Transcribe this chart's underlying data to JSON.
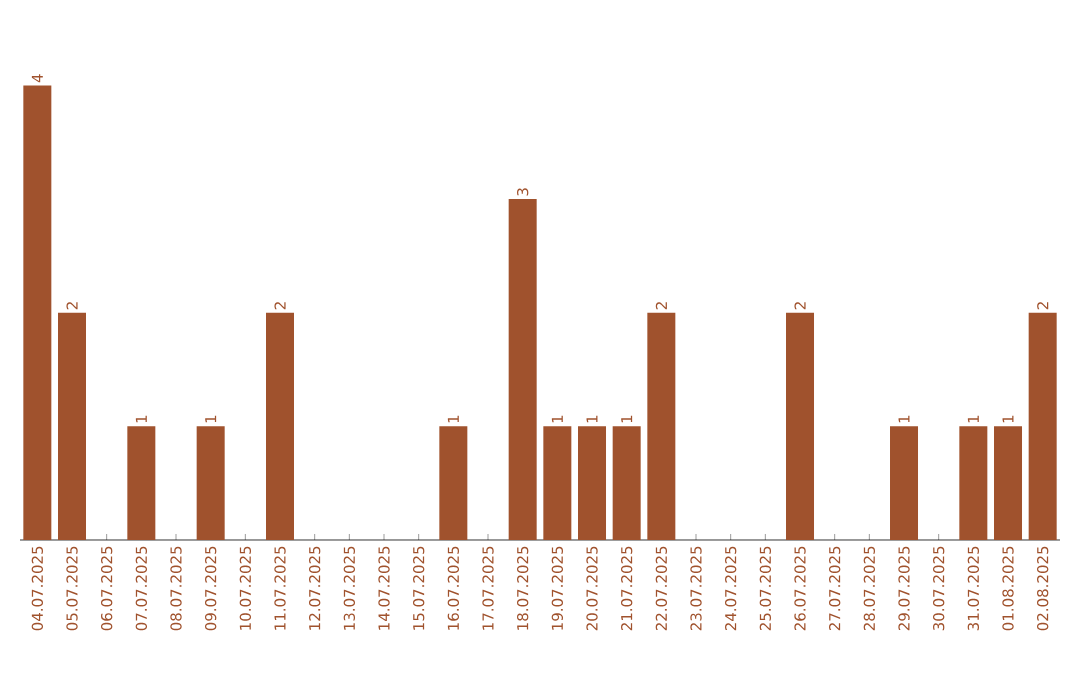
{
  "chart_data": {
    "type": "bar",
    "categories": [
      "04.07.2025",
      "05.07.2025",
      "06.07.2025",
      "07.07.2025",
      "08.07.2025",
      "09.07.2025",
      "10.07.2025",
      "11.07.2025",
      "12.07.2025",
      "13.07.2025",
      "14.07.2025",
      "15.07.2025",
      "16.07.2025",
      "17.07.2025",
      "18.07.2025",
      "19.07.2025",
      "20.07.2025",
      "21.07.2025",
      "22.07.2025",
      "23.07.2025",
      "24.07.2025",
      "25.07.2025",
      "26.07.2025",
      "27.07.2025",
      "28.07.2025",
      "29.07.2025",
      "30.07.2025",
      "31.07.2025",
      "01.08.2025",
      "02.08.2025"
    ],
    "values": [
      4,
      2,
      0,
      1,
      0,
      1,
      0,
      2,
      0,
      0,
      0,
      0,
      1,
      0,
      3,
      1,
      1,
      1,
      2,
      0,
      0,
      0,
      2,
      0,
      0,
      1,
      0,
      1,
      1,
      2
    ],
    "value_labels": [
      "4",
      "2",
      null,
      "1",
      null,
      "1",
      null,
      "2",
      null,
      null,
      null,
      null,
      "1",
      null,
      "3",
      "1",
      "1",
      "1",
      "2",
      null,
      null,
      null,
      "2",
      null,
      null,
      "1",
      null,
      "1",
      "1",
      "2"
    ],
    "color": "#a0522d"
  }
}
